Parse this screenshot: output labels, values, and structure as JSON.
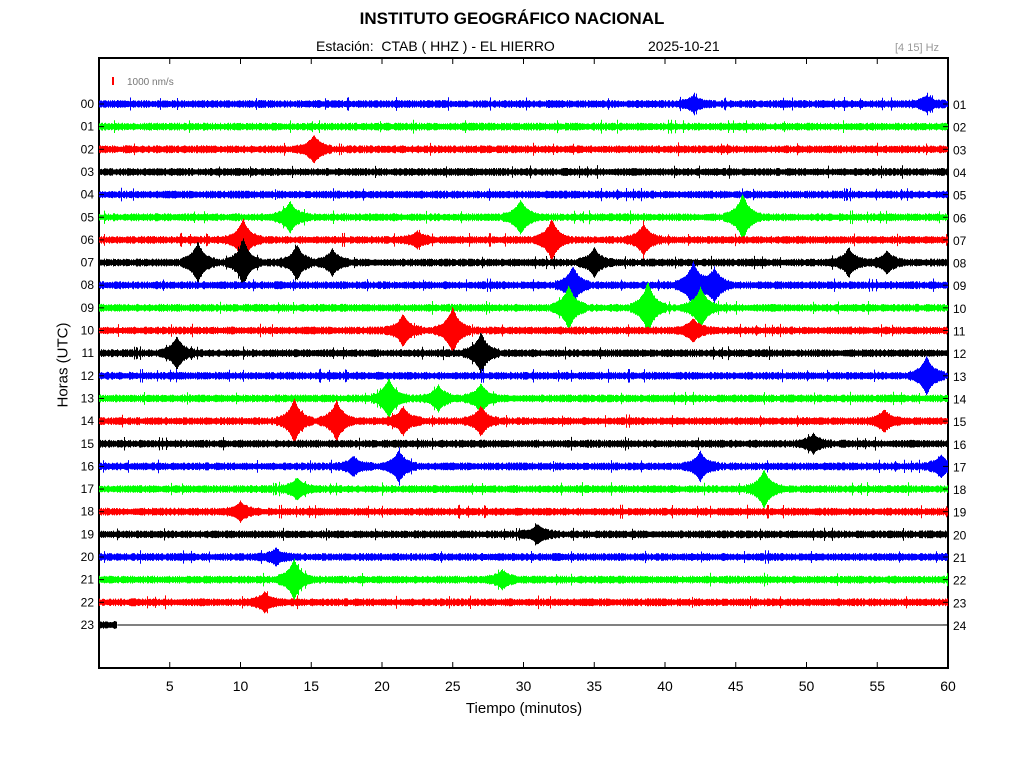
{
  "header": {
    "title": "INSTITUTO GEOGRÁFICO NACIONAL",
    "station": "Estación:  CTAB ( HHZ ) - EL HIERRO",
    "date": "2025-10-21",
    "filter": "[4 15] Hz"
  },
  "chart_data": {
    "type": "line",
    "title": "INSTITUTO GEOGRÁFICO NACIONAL",
    "xlabel": "Tiempo (minutos)",
    "ylabel": "Horas (UTC)",
    "xlim": [
      0,
      60
    ],
    "x_ticks": [
      "5",
      "10",
      "15",
      "20",
      "25",
      "30",
      "35",
      "40",
      "45",
      "50",
      "55",
      "60"
    ],
    "left_hour_labels": [
      "00",
      "01",
      "02",
      "03",
      "04",
      "05",
      "06",
      "07",
      "08",
      "09",
      "10",
      "11",
      "12",
      "13",
      "14",
      "15",
      "16",
      "17",
      "18",
      "19",
      "20",
      "21",
      "22",
      "23"
    ],
    "right_hour_labels": [
      "01",
      "02",
      "03",
      "04",
      "05",
      "06",
      "07",
      "08",
      "09",
      "10",
      "11",
      "12",
      "13",
      "14",
      "15",
      "16",
      "17",
      "18",
      "19",
      "20",
      "21",
      "22",
      "23",
      "24"
    ],
    "scale_label": "1000 nm/s",
    "trace_colors": [
      "#0000ff",
      "#00ff00",
      "#ff0000",
      "#000000"
    ],
    "data_end_minute_last_row": 1.3,
    "events": [
      {
        "hour": 0,
        "minute": 42.0,
        "amp": 0.4
      },
      {
        "hour": 0,
        "minute": 58.5,
        "amp": 0.4
      },
      {
        "hour": 2,
        "minute": 15.2,
        "amp": 0.8
      },
      {
        "hour": 5,
        "minute": 13.5,
        "amp": 0.9
      },
      {
        "hour": 5,
        "minute": 29.8,
        "amp": 1.0
      },
      {
        "hour": 5,
        "minute": 45.5,
        "amp": 1.4
      },
      {
        "hour": 6,
        "minute": 10.2,
        "amp": 1.2
      },
      {
        "hour": 6,
        "minute": 22.5,
        "amp": 0.4
      },
      {
        "hour": 6,
        "minute": 32.0,
        "amp": 1.2
      },
      {
        "hour": 6,
        "minute": 38.5,
        "amp": 0.9
      },
      {
        "hour": 7,
        "minute": 7.0,
        "amp": 1.2
      },
      {
        "hour": 7,
        "minute": 10.2,
        "amp": 1.4
      },
      {
        "hour": 7,
        "minute": 14.0,
        "amp": 1.0
      },
      {
        "hour": 7,
        "minute": 16.5,
        "amp": 0.7
      },
      {
        "hour": 7,
        "minute": 35.0,
        "amp": 0.8
      },
      {
        "hour": 7,
        "minute": 53.0,
        "amp": 0.8
      },
      {
        "hour": 7,
        "minute": 55.7,
        "amp": 0.6
      },
      {
        "hour": 8,
        "minute": 33.5,
        "amp": 1.1
      },
      {
        "hour": 8,
        "minute": 42.0,
        "amp": 1.4
      },
      {
        "hour": 8,
        "minute": 43.5,
        "amp": 1.0
      },
      {
        "hour": 9,
        "minute": 33.2,
        "amp": 1.3
      },
      {
        "hour": 9,
        "minute": 38.8,
        "amp": 1.6
      },
      {
        "hour": 9,
        "minute": 42.5,
        "amp": 1.2
      },
      {
        "hour": 10,
        "minute": 21.5,
        "amp": 0.9
      },
      {
        "hour": 10,
        "minute": 25.0,
        "amp": 1.4
      },
      {
        "hour": 10,
        "minute": 42.0,
        "amp": 0.6
      },
      {
        "hour": 11,
        "minute": 5.5,
        "amp": 0.9
      },
      {
        "hour": 11,
        "minute": 27.0,
        "amp": 1.2
      },
      {
        "hour": 12,
        "minute": 58.5,
        "amp": 1.1
      },
      {
        "hour": 13,
        "minute": 20.5,
        "amp": 1.2
      },
      {
        "hour": 13,
        "minute": 24.0,
        "amp": 0.7
      },
      {
        "hour": 13,
        "minute": 27.0,
        "amp": 0.8
      },
      {
        "hour": 14,
        "minute": 13.8,
        "amp": 1.3
      },
      {
        "hour": 14,
        "minute": 16.8,
        "amp": 1.2
      },
      {
        "hour": 14,
        "minute": 21.5,
        "amp": 0.8
      },
      {
        "hour": 14,
        "minute": 27.0,
        "amp": 0.8
      },
      {
        "hour": 14,
        "minute": 55.5,
        "amp": 0.6
      },
      {
        "hour": 15,
        "minute": 50.5,
        "amp": 0.5
      },
      {
        "hour": 16,
        "minute": 18.0,
        "amp": 0.5
      },
      {
        "hour": 16,
        "minute": 21.2,
        "amp": 0.9
      },
      {
        "hour": 16,
        "minute": 42.5,
        "amp": 0.8
      },
      {
        "hour": 16,
        "minute": 59.5,
        "amp": 0.6
      },
      {
        "hour": 17,
        "minute": 14.0,
        "amp": 0.6
      },
      {
        "hour": 17,
        "minute": 47.0,
        "amp": 1.1
      },
      {
        "hour": 18,
        "minute": 10.0,
        "amp": 0.5
      },
      {
        "hour": 19,
        "minute": 31.0,
        "amp": 0.5
      },
      {
        "hour": 20,
        "minute": 12.5,
        "amp": 0.4
      },
      {
        "hour": 21,
        "minute": 13.8,
        "amp": 1.2
      },
      {
        "hour": 21,
        "minute": 28.5,
        "amp": 0.5
      },
      {
        "hour": 22,
        "minute": 11.7,
        "amp": 0.5
      }
    ]
  }
}
